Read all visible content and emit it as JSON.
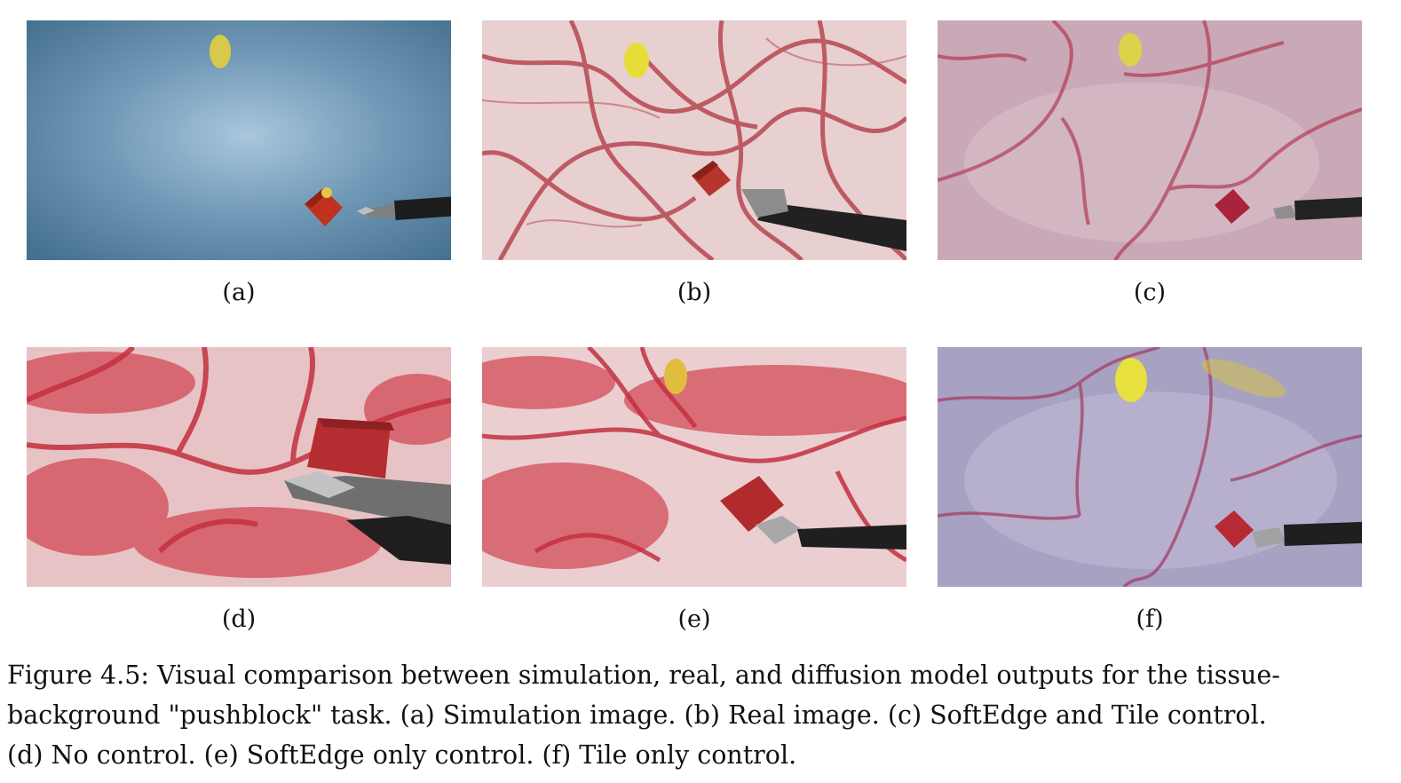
{
  "figure": {
    "panels": [
      {
        "id": "a",
        "label": "(a)"
      },
      {
        "id": "b",
        "label": "(b)"
      },
      {
        "id": "c",
        "label": "(c)"
      },
      {
        "id": "d",
        "label": "(d)"
      },
      {
        "id": "e",
        "label": "(e)"
      },
      {
        "id": "f",
        "label": "(f)"
      }
    ],
    "caption_lines": [
      "Figure 4.5: Visual comparison between simulation, real, and diffusion model outputs for the tissue-",
      "background \"pushblock\" task. (a) Simulation image. (b) Real image. (c) SoftEdge and Tile control.",
      "(d) No control. (e) SoftEdge only control. (f) Tile only control."
    ]
  }
}
